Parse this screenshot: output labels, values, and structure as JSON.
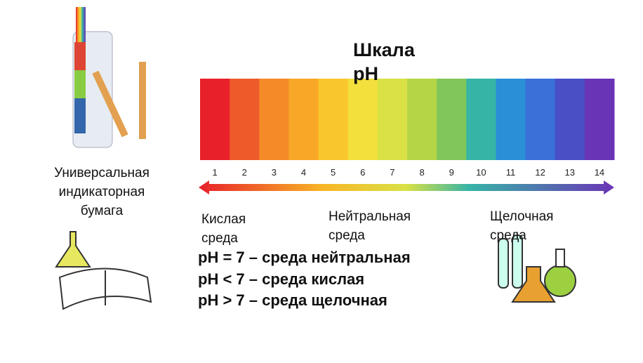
{
  "title": "Шкала pH",
  "scale": {
    "ticks": [
      1,
      2,
      3,
      4,
      5,
      6,
      7,
      8,
      9,
      10,
      11,
      12,
      13,
      14
    ],
    "colors": [
      "#e8202a",
      "#ef5a2a",
      "#f58a28",
      "#f8a826",
      "#f9c62c",
      "#f3e03c",
      "#d9e145",
      "#b5d547",
      "#80c65a",
      "#36b4a6",
      "#2b8fd8",
      "#3a70d8",
      "#4a4fc6",
      "#6a34b6"
    ]
  },
  "paper_label": "Универсальная индикаторная бумага",
  "zones": {
    "acid": "Кислая среда",
    "neutral": "Нейтральная среда",
    "alkaline": "Щелочная среда"
  },
  "rules": [
    "pH = 7 – среда нейтральная",
    "pH < 7 – среда кислая",
    "pH > 7 – среда щелочная"
  ]
}
